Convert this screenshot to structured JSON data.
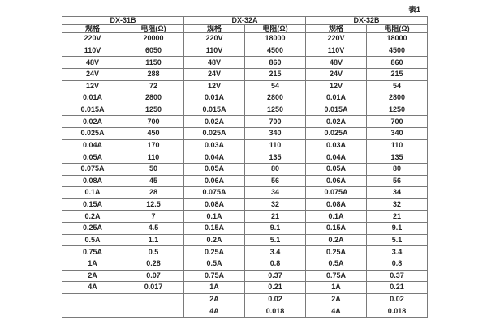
{
  "caption": "表1",
  "table": {
    "groups": [
      {
        "name": "DX-31B",
        "spec_header": "规格",
        "res_header": "电阻(Ω)"
      },
      {
        "name": "DX-32A",
        "spec_header": "规格",
        "res_header": "电阻(Ω)"
      },
      {
        "name": "DX-32B",
        "spec_header": "规格",
        "res_header": "电阻(Ω)"
      }
    ],
    "rows": [
      [
        "220V",
        "20000",
        "220V",
        "18000",
        "220V",
        "18000"
      ],
      [
        "110V",
        "6050",
        "110V",
        "4500",
        "110V",
        "4500"
      ],
      [
        "48V",
        "1150",
        "48V",
        "860",
        "48V",
        "860"
      ],
      [
        "24V",
        "288",
        "24V",
        "215",
        "24V",
        "215"
      ],
      [
        "12V",
        "72",
        "12V",
        "54",
        "12V",
        "54"
      ],
      [
        "0.01A",
        "2800",
        "0.01A",
        "2800",
        "0.01A",
        "2800"
      ],
      [
        "0.015A",
        "1250",
        "0.015A",
        "1250",
        "0.015A",
        "1250"
      ],
      [
        "0.02A",
        "700",
        "0.02A",
        "700",
        "0.02A",
        "700"
      ],
      [
        "0.025A",
        "450",
        "0.025A",
        "340",
        "0.025A",
        "340"
      ],
      [
        "0.04A",
        "170",
        "0.03A",
        "110",
        "0.03A",
        "110"
      ],
      [
        "0.05A",
        "110",
        "0.04A",
        "135",
        "0.04A",
        "135"
      ],
      [
        "0.075A",
        "50",
        "0.05A",
        "80",
        "0.05A",
        "80"
      ],
      [
        "0.08A",
        "45",
        "0.06A",
        "56",
        "0.06A",
        "56"
      ],
      [
        "0.1A",
        "28",
        "0.075A",
        "34",
        "0.075A",
        "34"
      ],
      [
        "0.15A",
        "12.5",
        "0.08A",
        "32",
        "0.08A",
        "32"
      ],
      [
        "0.2A",
        "7",
        "0.1A",
        "21",
        "0.1A",
        "21"
      ],
      [
        "0.25A",
        "4.5",
        "0.15A",
        "9.1",
        "0.15A",
        "9.1"
      ],
      [
        "0.5A",
        "1.1",
        "0.2A",
        "5.1",
        "0.2A",
        "5.1"
      ],
      [
        "0.75A",
        "0.5",
        "0.25A",
        "3.4",
        "0.25A",
        "3.4"
      ],
      [
        "1A",
        "0.28",
        "0.5A",
        "0.8",
        "0.5A",
        "0.8"
      ],
      [
        "2A",
        "0.07",
        "0.75A",
        "0.37",
        "0.75A",
        "0.37"
      ],
      [
        "4A",
        "0.017",
        "1A",
        "0.21",
        "1A",
        "0.21"
      ],
      [
        "",
        "",
        "2A",
        "0.02",
        "2A",
        "0.02"
      ],
      [
        "",
        "",
        "4A",
        "0.018",
        "4A",
        "0.018"
      ]
    ]
  }
}
